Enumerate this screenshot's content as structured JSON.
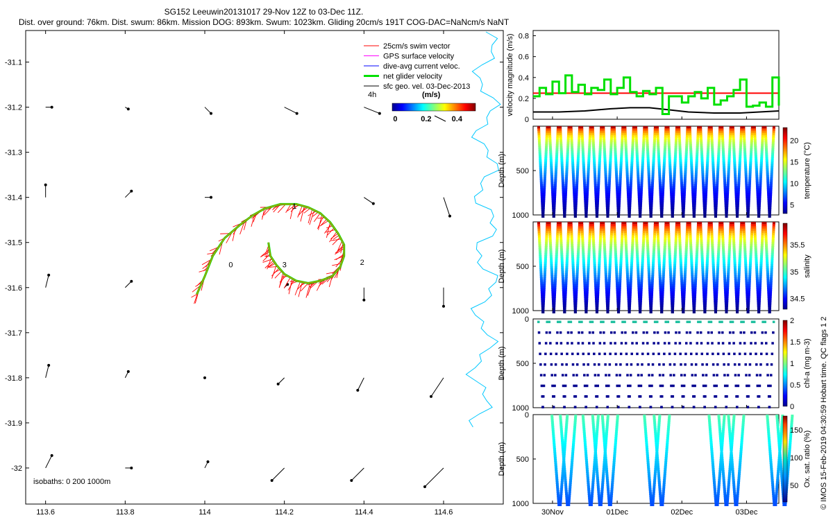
{
  "header": {
    "title": "SG152 Leeuwin20131017 29-Nov 12Z to 03-Dec 11Z.",
    "subtitle": "Dist. over ground: 76km. Dist. swum: 86km. Mission DOG: 893km. Swum: 1023km. Gliding 20cm/s 191T COG-DAC=NaNcm/s NaNT"
  },
  "side_note": "© IMOS 15-Feb-2019 04:30:59 Hobart time. QC flags 1  2",
  "map": {
    "x_ticks": [
      "113.6",
      "113.8",
      "114",
      "114.2",
      "114.4",
      "114.6"
    ],
    "x_tick_values": [
      113.6,
      113.8,
      114.0,
      114.2,
      114.4,
      114.6
    ],
    "y_ticks": [
      "-31.1",
      "-31.2",
      "-31.3",
      "-31.4",
      "-31.5",
      "-31.6",
      "-31.7",
      "-31.8",
      "-31.9",
      "-32"
    ],
    "y_tick_values": [
      -31.1,
      -31.2,
      -31.3,
      -31.4,
      -31.5,
      -31.6,
      -31.7,
      -31.8,
      -31.9,
      -32.0
    ],
    "xlim": [
      113.55,
      114.75
    ],
    "ylim": [
      -32.08,
      -31.03
    ],
    "isobaths_label": "isobaths: 0   200  1000m",
    "track_markers": [
      {
        "label": "1",
        "lon": 114.22,
        "lat": -31.425
      },
      {
        "label": "2",
        "lon": 114.39,
        "lat": -31.55
      },
      {
        "label": "3",
        "lon": 114.195,
        "lat": -31.555
      },
      {
        "label": "0",
        "lon": 114.06,
        "lat": -31.555
      }
    ],
    "legend": [
      {
        "label": "25cm/s swim vector",
        "color": "#ff0000"
      },
      {
        "label": "GPS surface velocity",
        "color": "#ff00ff"
      },
      {
        "label": "dive-avg current veloc.",
        "color": "#0000ff"
      },
      {
        "label": "net glider velocity",
        "color": "#00e000"
      },
      {
        "label": "sfc geo. vel. 03-Dec-2013",
        "color": "#000000"
      }
    ],
    "scale_label": "4h",
    "colorbar": {
      "title": "(m/s)",
      "ticks": [
        "0",
        "0.2",
        "0.4"
      ],
      "tick_values": [
        0,
        0.2,
        0.4
      ],
      "range": [
        -0.02,
        0.52
      ]
    }
  },
  "panels": {
    "velocity": {
      "ylabel": "velocity magnitude (m/s)",
      "y_ticks": [
        "0",
        "0.2",
        "0.4",
        "0.6",
        "0.8"
      ],
      "y_tick_values": [
        0,
        0.2,
        0.4,
        0.6,
        0.8
      ],
      "ylim": [
        0,
        0.85
      ]
    },
    "temperature": {
      "ylabel": "Depth (m)",
      "clabel": "temperature (°C)",
      "y_ticks": [
        "500",
        "1000"
      ],
      "c_ticks": [
        "5",
        "10",
        "15",
        "20"
      ],
      "c_tick_values": [
        5,
        10,
        15,
        20
      ],
      "crange": [
        3,
        23
      ]
    },
    "salinity": {
      "ylabel": "Depth (m)",
      "clabel": "salinity",
      "y_ticks": [
        "500",
        "1000"
      ],
      "c_ticks": [
        "34.5",
        "35",
        "35.5"
      ],
      "c_tick_values": [
        34.5,
        35,
        35.5
      ],
      "crange": [
        34.3,
        35.9
      ]
    },
    "chla": {
      "ylabel": "Depth (m)",
      "clabel": "chl-a (mg m-3)",
      "y_ticks": [
        "0",
        "500",
        "1000"
      ],
      "c_ticks": [
        "0",
        "0.5",
        "1",
        "1.5",
        "2"
      ],
      "c_tick_values": [
        0,
        0.5,
        1,
        1.5,
        2
      ],
      "crange": [
        0,
        2
      ]
    },
    "oxygen": {
      "ylabel": "Depth (m)",
      "clabel": "Ox. sat. ratio (%)",
      "y_ticks": [
        "0",
        "500",
        "1000"
      ],
      "c_ticks": [
        "50",
        "100",
        "150"
      ],
      "c_tick_values": [
        50,
        100,
        150
      ],
      "crange": [
        20,
        175
      ]
    }
  },
  "time_axis": {
    "ticks": [
      "30Nov",
      "01Dec",
      "02Dec",
      "03Dec"
    ],
    "tick_positions": [
      0.5,
      1.5,
      2.5,
      3.5
    ],
    "range_days": [
      0.2,
      4.0
    ]
  },
  "chart_data": {
    "type": "scatter",
    "title": "SG152 Leeuwin20131017 29-Nov 12Z to 03-Dec 11Z.",
    "xlabel": "",
    "ylabel": "",
    "xlim": [
      113.55,
      114.75
    ],
    "ylim": [
      -32.08,
      -31.03
    ],
    "track": [
      [
        113.98,
        -31.615
      ],
      [
        114.0,
        -31.575
      ],
      [
        114.02,
        -31.53
      ],
      [
        114.05,
        -31.49
      ],
      [
        114.09,
        -31.46
      ],
      [
        114.12,
        -31.44
      ],
      [
        114.15,
        -31.425
      ],
      [
        114.19,
        -31.415
      ],
      [
        114.23,
        -31.415
      ],
      [
        114.26,
        -31.422
      ],
      [
        114.29,
        -31.435
      ],
      [
        114.315,
        -31.455
      ],
      [
        114.335,
        -31.48
      ],
      [
        114.35,
        -31.505
      ],
      [
        114.35,
        -31.53
      ],
      [
        114.34,
        -31.555
      ],
      [
        114.32,
        -31.575
      ],
      [
        114.29,
        -31.585
      ],
      [
        114.26,
        -31.59
      ],
      [
        114.23,
        -31.585
      ],
      [
        114.2,
        -31.57
      ],
      [
        114.18,
        -31.55
      ],
      [
        114.165,
        -31.53
      ],
      [
        114.16,
        -31.5
      ]
    ],
    "current_vectors": [
      {
        "lon": 113.6,
        "lat": -31.2,
        "u": 0.01,
        "v": 0.0
      },
      {
        "lon": 113.8,
        "lat": -31.2,
        "u": 0.005,
        "v": -0.003
      },
      {
        "lon": 114.0,
        "lat": -31.2,
        "u": 0.01,
        "v": -0.01
      },
      {
        "lon": 114.2,
        "lat": -31.2,
        "u": 0.02,
        "v": -0.01
      },
      {
        "lon": 114.4,
        "lat": -31.2,
        "u": 0.025,
        "v": -0.01
      },
      {
        "lon": 113.6,
        "lat": -31.4,
        "u": 0.0,
        "v": 0.02
      },
      {
        "lon": 113.8,
        "lat": -31.4,
        "u": 0.01,
        "v": 0.01
      },
      {
        "lon": 114.0,
        "lat": -31.4,
        "u": 0.01,
        "v": 0.0
      },
      {
        "lon": 114.4,
        "lat": -31.4,
        "u": 0.015,
        "v": -0.01
      },
      {
        "lon": 114.6,
        "lat": -31.4,
        "u": 0.01,
        "v": -0.03
      },
      {
        "lon": 113.6,
        "lat": -31.6,
        "u": 0.005,
        "v": 0.02
      },
      {
        "lon": 113.8,
        "lat": -31.6,
        "u": 0.01,
        "v": 0.01
      },
      {
        "lon": 114.2,
        "lat": -31.6,
        "u": 0.005,
        "v": 0.005
      },
      {
        "lon": 114.4,
        "lat": -31.6,
        "u": 0.0,
        "v": -0.02
      },
      {
        "lon": 114.6,
        "lat": -31.6,
        "u": 0.0,
        "v": -0.03
      },
      {
        "lon": 113.6,
        "lat": -31.8,
        "u": 0.005,
        "v": 0.02
      },
      {
        "lon": 113.8,
        "lat": -31.8,
        "u": 0.005,
        "v": 0.01
      },
      {
        "lon": 114.0,
        "lat": -31.8,
        "u": 0.0,
        "v": 0.0
      },
      {
        "lon": 114.2,
        "lat": -31.8,
        "u": -0.01,
        "v": -0.01
      },
      {
        "lon": 114.4,
        "lat": -31.8,
        "u": -0.01,
        "v": -0.02
      },
      {
        "lon": 114.6,
        "lat": -31.8,
        "u": -0.02,
        "v": -0.03
      },
      {
        "lon": 113.6,
        "lat": -32.0,
        "u": 0.01,
        "v": 0.02
      },
      {
        "lon": 113.8,
        "lat": -32.0,
        "u": 0.01,
        "v": 0.0
      },
      {
        "lon": 114.0,
        "lat": -32.0,
        "u": 0.005,
        "v": 0.01
      },
      {
        "lon": 114.2,
        "lat": -32.0,
        "u": -0.02,
        "v": -0.02
      },
      {
        "lon": 114.4,
        "lat": -32.0,
        "u": -0.02,
        "v": -0.02
      },
      {
        "lon": 114.6,
        "lat": -32.0,
        "u": -0.03,
        "v": -0.03
      }
    ],
    "velocity_series": [
      {
        "name": "25cm/s swim vector",
        "color": "#ff0000",
        "x": [
          0.2,
          4.0
        ],
        "y": [
          0.25,
          0.25
        ]
      },
      {
        "name": "sfc geo. vel. 03-Dec-2013",
        "color": "#000000",
        "x": [
          0.2,
          0.6,
          1.0,
          1.4,
          1.7,
          2.0,
          2.3,
          2.6,
          3.0,
          3.4,
          3.7,
          4.0
        ],
        "y": [
          0.07,
          0.07,
          0.08,
          0.1,
          0.11,
          0.11,
          0.09,
          0.07,
          0.06,
          0.06,
          0.07,
          0.08
        ]
      },
      {
        "name": "net glider velocity",
        "color": "#00e000",
        "x": [
          0.2,
          0.3,
          0.4,
          0.5,
          0.6,
          0.7,
          0.8,
          0.9,
          1.0,
          1.1,
          1.2,
          1.3,
          1.4,
          1.5,
          1.6,
          1.7,
          1.8,
          1.9,
          2.0,
          2.1,
          2.2,
          2.3,
          2.4,
          2.5,
          2.6,
          2.7,
          2.8,
          2.9,
          3.0,
          3.1,
          3.2,
          3.3,
          3.4,
          3.5,
          3.6,
          3.7,
          3.8,
          3.9,
          4.0
        ],
        "y": [
          0.22,
          0.3,
          0.24,
          0.36,
          0.25,
          0.42,
          0.26,
          0.33,
          0.24,
          0.3,
          0.28,
          0.38,
          0.24,
          0.3,
          0.4,
          0.26,
          0.22,
          0.27,
          0.24,
          0.3,
          0.05,
          0.22,
          0.22,
          0.16,
          0.22,
          0.26,
          0.2,
          0.3,
          0.14,
          0.18,
          0.22,
          0.28,
          0.38,
          0.12,
          0.13,
          0.16,
          0.12,
          0.4,
          0.13
        ]
      }
    ]
  }
}
